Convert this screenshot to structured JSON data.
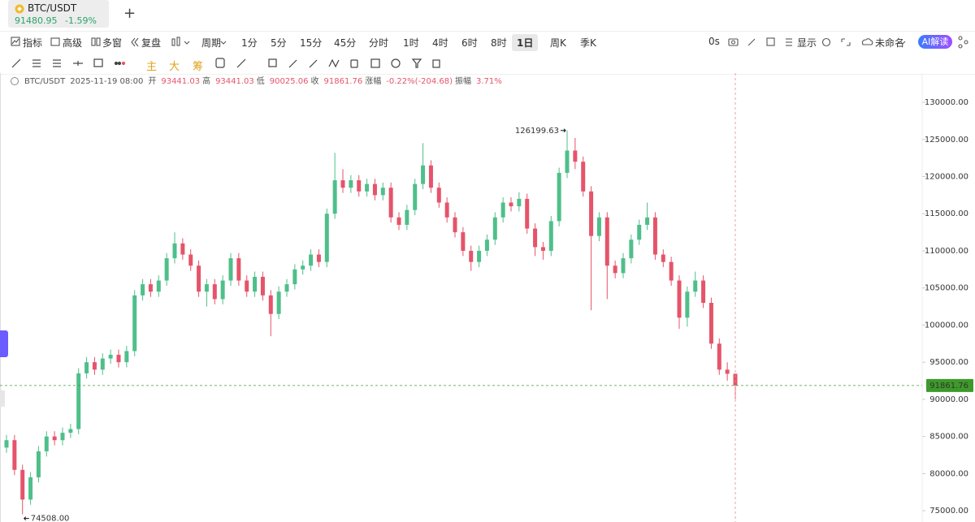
{
  "header": {
    "tab": "BTC/USDT",
    "price": "91480.95",
    "change": "-1.59%"
  },
  "toolbar": {
    "left": [
      "指标",
      "高级",
      "多窗",
      "复盘"
    ],
    "period": "周期",
    "intervals": [
      "1分",
      "5分",
      "15分",
      "45分",
      "分时",
      "1时",
      "4时",
      "6时",
      "8时",
      "1日",
      "周K",
      "季K"
    ],
    "right": [
      "0s",
      "显示",
      "未命名",
      "AI解读"
    ]
  },
  "draw_tools": [
    "主",
    "大",
    "筹"
  ],
  "chart_data": {
    "type": "candlestick",
    "info": {
      "symbol": "BTC/USDT",
      "time": "2025-11-19 08:00",
      "labels": [
        "开",
        "高",
        "低",
        "收",
        "涨幅",
        "振幅"
      ],
      "change": "-0.22%(-204.68)",
      "amplitude": "3.71%"
    },
    "open": [
      83500,
      84500,
      80500,
      76500,
      79500,
      83000,
      85000,
      84500,
      85500,
      86000,
      93500,
      95000,
      94000,
      95500,
      96000,
      95000,
      96500,
      104000,
      105500,
      104500,
      106000,
      109000,
      111000,
      109500,
      108000,
      104500,
      105500,
      103500,
      106000,
      109000,
      106000,
      104500,
      106500,
      104000,
      101500,
      104500,
      105500,
      107500,
      108000,
      109500,
      108500,
      115000,
      119500,
      118500,
      119500,
      118000,
      119000,
      117500,
      118500,
      114500,
      113500,
      115500,
      119000,
      121500,
      118500,
      116500,
      114500,
      112500,
      110000,
      108500,
      110000,
      111500,
      114500,
      116500,
      116000,
      117000,
      113000,
      110500,
      110000,
      114000,
      120500,
      123500,
      122000,
      118000,
      112000,
      114500,
      108000,
      107000,
      109000,
      111500,
      113500,
      114500,
      109500,
      108500,
      106000,
      101000,
      104500,
      106000,
      103000,
      97500,
      94000,
      93441.03
    ],
    "high": [
      85200,
      85200,
      81200,
      80200,
      83700,
      85700,
      85700,
      86200,
      86700,
      94200,
      95700,
      95700,
      96200,
      96700,
      96700,
      97200,
      104700,
      106200,
      106200,
      106700,
      109700,
      112500,
      111700,
      110200,
      108700,
      106200,
      106200,
      106700,
      109700,
      109700,
      106700,
      107200,
      107200,
      104700,
      105200,
      106200,
      108200,
      108700,
      110200,
      110200,
      115700,
      123200,
      121000,
      120200,
      120200,
      119700,
      119700,
      119200,
      119200,
      115200,
      116200,
      119700,
      124500,
      122200,
      119200,
      117200,
      115200,
      113200,
      110700,
      110700,
      112200,
      115200,
      117200,
      117200,
      117900,
      117700,
      113700,
      111200,
      114700,
      121200,
      126199.63,
      125200,
      122700,
      118700,
      115200,
      115200,
      108700,
      109700,
      112200,
      114200,
      116500,
      115200,
      110200,
      109200,
      106700,
      105200,
      107200,
      106700,
      103700,
      98200,
      95000,
      93441.03
    ],
    "low": [
      82800,
      79800,
      74508,
      75800,
      78800,
      82300,
      83800,
      83800,
      84800,
      85300,
      92800,
      93300,
      93300,
      94800,
      94300,
      94300,
      95800,
      103300,
      103800,
      103800,
      105300,
      108300,
      108800,
      107300,
      103800,
      102500,
      102800,
      102800,
      105300,
      105300,
      103800,
      103800,
      103300,
      98500,
      100800,
      103800,
      104800,
      106800,
      107300,
      107800,
      107800,
      114300,
      117800,
      117800,
      117300,
      117300,
      116800,
      116800,
      113800,
      112800,
      112800,
      114800,
      118300,
      117800,
      115800,
      113800,
      111800,
      109300,
      107300,
      107800,
      109300,
      110800,
      113800,
      115300,
      115300,
      112300,
      109300,
      108800,
      109300,
      113300,
      119800,
      121000,
      117300,
      102000,
      111300,
      103500,
      106300,
      106300,
      108300,
      110800,
      112800,
      108800,
      107800,
      105300,
      99500,
      99800,
      103800,
      102300,
      96800,
      93300,
      92500,
      90025.06
    ],
    "close": [
      84500,
      80500,
      76500,
      79500,
      83000,
      85000,
      84500,
      85500,
      86000,
      93500,
      95000,
      94000,
      95500,
      96000,
      95000,
      96500,
      104000,
      105500,
      104500,
      106000,
      109000,
      111000,
      109500,
      108000,
      104500,
      105500,
      103500,
      106000,
      109000,
      106000,
      104500,
      106500,
      104000,
      101500,
      104500,
      105500,
      107500,
      108000,
      109500,
      108500,
      115000,
      119500,
      118500,
      119500,
      118000,
      119000,
      117500,
      118500,
      114500,
      113500,
      115500,
      119000,
      121500,
      118500,
      116500,
      114500,
      112500,
      110000,
      108500,
      110000,
      111500,
      114500,
      116500,
      116000,
      117000,
      113000,
      110500,
      110000,
      114000,
      120500,
      123500,
      122000,
      118000,
      112000,
      114500,
      108000,
      107000,
      109000,
      111500,
      113500,
      114500,
      109500,
      108500,
      106000,
      101000,
      104500,
      106000,
      103000,
      97500,
      94000,
      93441.03,
      91861.76
    ],
    "up_color": "#4fbf8a",
    "down_color": "#e5546a",
    "annotations": [
      {
        "value": 126199.63,
        "label": "126199.63"
      },
      {
        "value": 74508,
        "label": "74508.00"
      }
    ],
    "ylim": [
      73700,
      133720
    ],
    "yticks": [
      {
        "value": 75000,
        "label": "75000.00"
      },
      {
        "value": 80000,
        "label": "80000.00"
      },
      {
        "value": 85000,
        "label": "85000.00"
      },
      {
        "value": 90000,
        "label": "90000.00"
      },
      {
        "value": 95000,
        "label": "95000.00"
      },
      {
        "value": 100000,
        "label": "100000.00"
      },
      {
        "value": 105000,
        "label": "105000.00"
      },
      {
        "value": 110000,
        "label": "110000.00"
      },
      {
        "value": 115000,
        "label": "115000.00"
      },
      {
        "value": 120000,
        "label": "120000.00"
      },
      {
        "value": 125000,
        "label": "125000.00"
      },
      {
        "value": 130000,
        "label": "130000.00"
      }
    ],
    "grid": false
  }
}
